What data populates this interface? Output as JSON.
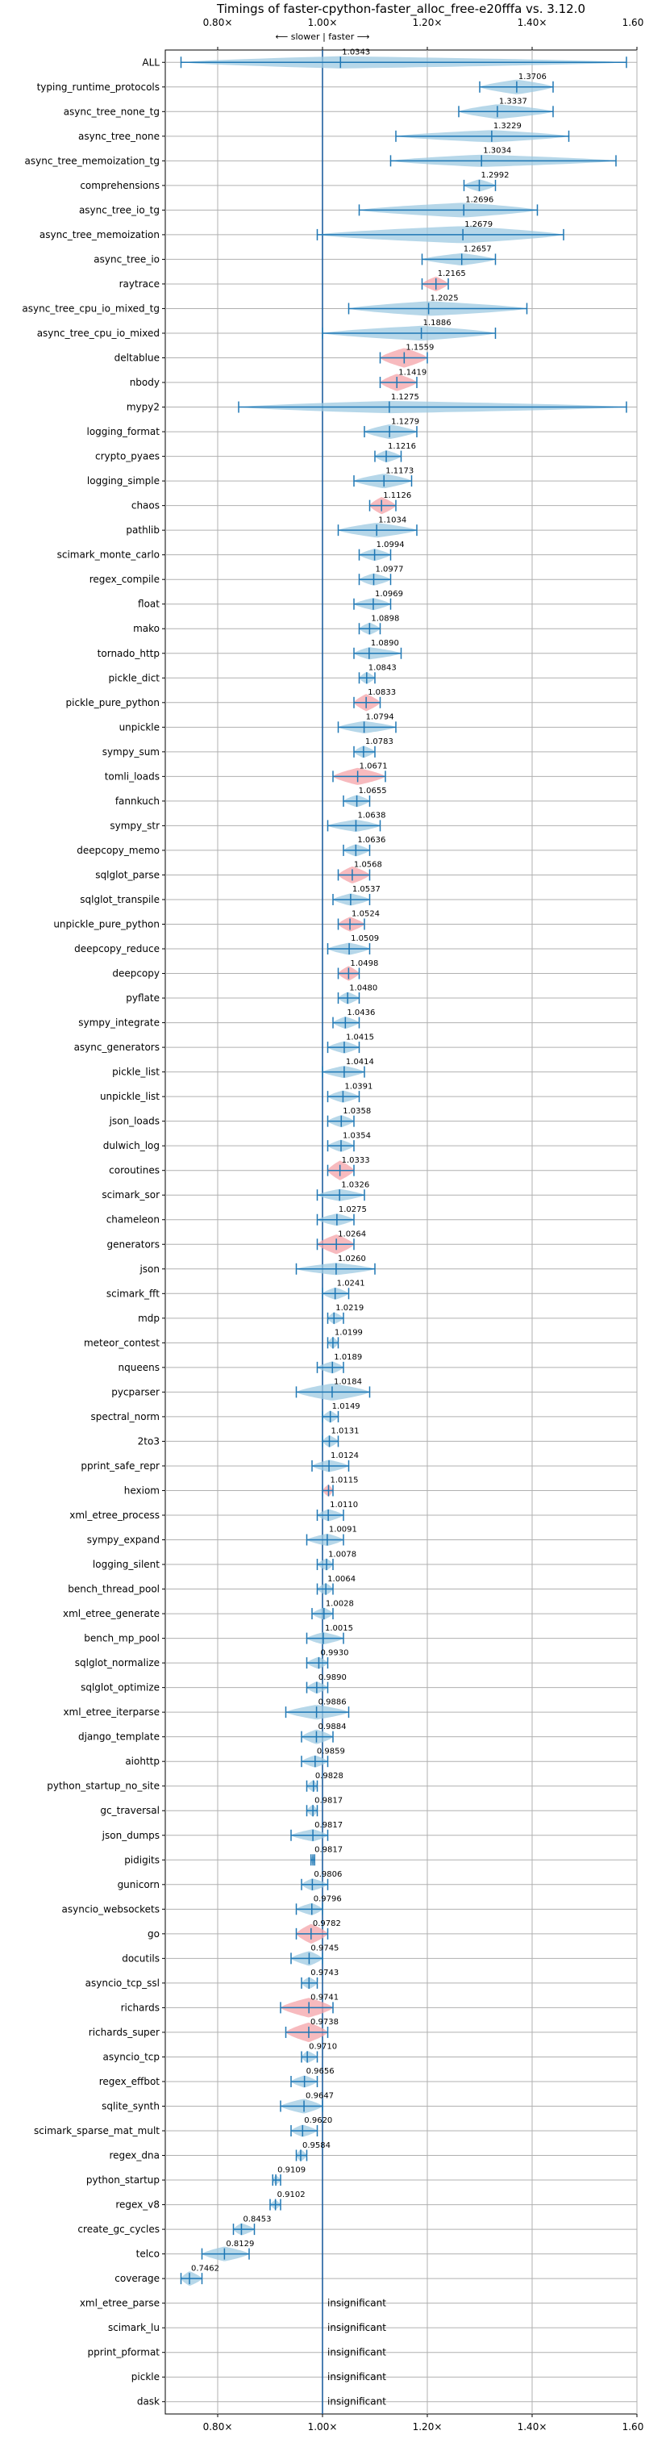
{
  "chart_data": {
    "type": "violin",
    "title": "Timings of faster-cpython-faster_alloc_free-e20fffa vs. 3.12.0",
    "direction_label": "⟵ slower | faster ⟶",
    "x_ticks": [
      "0.80×",
      "1.00×",
      "1.20×",
      "1.40×",
      "1.60×"
    ],
    "x_tick_values": [
      0.8,
      1.0,
      1.2,
      1.4,
      1.6
    ],
    "xlim": [
      0.7,
      1.6
    ],
    "reference_line": 1.0,
    "grid": true,
    "colors": {
      "normal": "#9ecae1",
      "highlight": "#f4a3a8",
      "line": "#1f77b4",
      "reference": "#1f5f9f"
    },
    "rows": [
      {
        "name": "ALL",
        "value": 1.0343,
        "lo": 0.73,
        "hi": 1.58,
        "width": 0.5,
        "hl": false
      },
      {
        "name": "typing_runtime_protocols",
        "value": 1.3706,
        "lo": 1.3,
        "hi": 1.44,
        "width": 0.6,
        "hl": false
      },
      {
        "name": "async_tree_none_tg",
        "value": 1.3337,
        "lo": 1.26,
        "hi": 1.44,
        "width": 0.6,
        "hl": false
      },
      {
        "name": "async_tree_none",
        "value": 1.3229,
        "lo": 1.14,
        "hi": 1.47,
        "width": 0.5,
        "hl": false
      },
      {
        "name": "async_tree_memoization_tg",
        "value": 1.3034,
        "lo": 1.13,
        "hi": 1.56,
        "width": 0.5,
        "hl": false
      },
      {
        "name": "comprehensions",
        "value": 1.2992,
        "lo": 1.27,
        "hi": 1.33,
        "width": 0.5,
        "hl": false
      },
      {
        "name": "async_tree_io_tg",
        "value": 1.2696,
        "lo": 1.07,
        "hi": 1.41,
        "width": 0.6,
        "hl": false
      },
      {
        "name": "async_tree_memoization",
        "value": 1.2679,
        "lo": 0.99,
        "hi": 1.46,
        "width": 0.7,
        "hl": false
      },
      {
        "name": "async_tree_io",
        "value": 1.2657,
        "lo": 1.19,
        "hi": 1.33,
        "width": 0.5,
        "hl": false
      },
      {
        "name": "raytrace",
        "value": 1.2165,
        "lo": 1.19,
        "hi": 1.24,
        "width": 0.6,
        "hl": true
      },
      {
        "name": "async_tree_cpu_io_mixed_tg",
        "value": 1.2025,
        "lo": 1.05,
        "hi": 1.39,
        "width": 0.6,
        "hl": false
      },
      {
        "name": "async_tree_cpu_io_mixed",
        "value": 1.1886,
        "lo": 1.0,
        "hi": 1.33,
        "width": 0.6,
        "hl": false
      },
      {
        "name": "deltablue",
        "value": 1.1559,
        "lo": 1.11,
        "hi": 1.2,
        "width": 0.8,
        "hl": true
      },
      {
        "name": "nbody",
        "value": 1.1419,
        "lo": 1.11,
        "hi": 1.18,
        "width": 0.7,
        "hl": true
      },
      {
        "name": "mypy2",
        "value": 1.1275,
        "lo": 0.84,
        "hi": 1.58,
        "width": 0.5,
        "hl": false
      },
      {
        "name": "logging_format",
        "value": 1.1279,
        "lo": 1.08,
        "hi": 1.18,
        "width": 0.6,
        "hl": false
      },
      {
        "name": "crypto_pyaes",
        "value": 1.1216,
        "lo": 1.1,
        "hi": 1.15,
        "width": 0.5,
        "hl": false
      },
      {
        "name": "logging_simple",
        "value": 1.1173,
        "lo": 1.06,
        "hi": 1.17,
        "width": 0.6,
        "hl": false
      },
      {
        "name": "chaos",
        "value": 1.1126,
        "lo": 1.09,
        "hi": 1.14,
        "width": 0.7,
        "hl": true
      },
      {
        "name": "pathlib",
        "value": 1.1034,
        "lo": 1.03,
        "hi": 1.18,
        "width": 0.6,
        "hl": false
      },
      {
        "name": "scimark_monte_carlo",
        "value": 1.0994,
        "lo": 1.07,
        "hi": 1.13,
        "width": 0.5,
        "hl": false
      },
      {
        "name": "regex_compile",
        "value": 1.0977,
        "lo": 1.07,
        "hi": 1.13,
        "width": 0.5,
        "hl": false
      },
      {
        "name": "float",
        "value": 1.0969,
        "lo": 1.06,
        "hi": 1.13,
        "width": 0.5,
        "hl": false
      },
      {
        "name": "mako",
        "value": 1.0898,
        "lo": 1.07,
        "hi": 1.11,
        "width": 0.5,
        "hl": false
      },
      {
        "name": "tornado_http",
        "value": 1.089,
        "lo": 1.06,
        "hi": 1.15,
        "width": 0.5,
        "hl": false
      },
      {
        "name": "pickle_dict",
        "value": 1.0843,
        "lo": 1.07,
        "hi": 1.1,
        "width": 0.5,
        "hl": false
      },
      {
        "name": "pickle_pure_python",
        "value": 1.0833,
        "lo": 1.06,
        "hi": 1.11,
        "width": 0.7,
        "hl": true
      },
      {
        "name": "unpickle",
        "value": 1.0794,
        "lo": 1.03,
        "hi": 1.14,
        "width": 0.5,
        "hl": false
      },
      {
        "name": "sympy_sum",
        "value": 1.0783,
        "lo": 1.06,
        "hi": 1.1,
        "width": 0.5,
        "hl": false
      },
      {
        "name": "tomli_loads",
        "value": 1.0671,
        "lo": 1.02,
        "hi": 1.12,
        "width": 0.7,
        "hl": true
      },
      {
        "name": "fannkuch",
        "value": 1.0655,
        "lo": 1.04,
        "hi": 1.09,
        "width": 0.5,
        "hl": false
      },
      {
        "name": "sympy_str",
        "value": 1.0638,
        "lo": 1.01,
        "hi": 1.11,
        "width": 0.5,
        "hl": false
      },
      {
        "name": "deepcopy_memo",
        "value": 1.0636,
        "lo": 1.04,
        "hi": 1.09,
        "width": 0.5,
        "hl": false
      },
      {
        "name": "sqlglot_parse",
        "value": 1.0568,
        "lo": 1.03,
        "hi": 1.09,
        "width": 0.7,
        "hl": true
      },
      {
        "name": "sqlglot_transpile",
        "value": 1.0537,
        "lo": 1.02,
        "hi": 1.09,
        "width": 0.5,
        "hl": false
      },
      {
        "name": "unpickle_pure_python",
        "value": 1.0524,
        "lo": 1.03,
        "hi": 1.08,
        "width": 0.6,
        "hl": true
      },
      {
        "name": "deepcopy_reduce",
        "value": 1.0509,
        "lo": 1.01,
        "hi": 1.09,
        "width": 0.5,
        "hl": false
      },
      {
        "name": "deepcopy",
        "value": 1.0498,
        "lo": 1.03,
        "hi": 1.07,
        "width": 0.6,
        "hl": true
      },
      {
        "name": "pyflate",
        "value": 1.048,
        "lo": 1.03,
        "hi": 1.07,
        "width": 0.5,
        "hl": false
      },
      {
        "name": "sympy_integrate",
        "value": 1.0436,
        "lo": 1.02,
        "hi": 1.07,
        "width": 0.5,
        "hl": false
      },
      {
        "name": "async_generators",
        "value": 1.0415,
        "lo": 1.01,
        "hi": 1.07,
        "width": 0.5,
        "hl": false
      },
      {
        "name": "pickle_list",
        "value": 1.0414,
        "lo": 1.0,
        "hi": 1.08,
        "width": 0.5,
        "hl": false
      },
      {
        "name": "unpickle_list",
        "value": 1.0391,
        "lo": 1.01,
        "hi": 1.07,
        "width": 0.5,
        "hl": false
      },
      {
        "name": "json_loads",
        "value": 1.0358,
        "lo": 1.01,
        "hi": 1.06,
        "width": 0.5,
        "hl": false
      },
      {
        "name": "dulwich_log",
        "value": 1.0354,
        "lo": 1.01,
        "hi": 1.06,
        "width": 0.5,
        "hl": false
      },
      {
        "name": "coroutines",
        "value": 1.0333,
        "lo": 1.01,
        "hi": 1.06,
        "width": 0.8,
        "hl": true
      },
      {
        "name": "scimark_sor",
        "value": 1.0326,
        "lo": 0.99,
        "hi": 1.08,
        "width": 0.5,
        "hl": false
      },
      {
        "name": "chameleon",
        "value": 1.0275,
        "lo": 0.99,
        "hi": 1.06,
        "width": 0.5,
        "hl": false
      },
      {
        "name": "generators",
        "value": 1.0264,
        "lo": 0.99,
        "hi": 1.06,
        "width": 0.8,
        "hl": true
      },
      {
        "name": "json",
        "value": 1.026,
        "lo": 0.95,
        "hi": 1.1,
        "width": 0.5,
        "hl": false
      },
      {
        "name": "scimark_fft",
        "value": 1.0241,
        "lo": 1.0,
        "hi": 1.05,
        "width": 0.5,
        "hl": false
      },
      {
        "name": "mdp",
        "value": 1.0219,
        "lo": 1.01,
        "hi": 1.04,
        "width": 0.5,
        "hl": false
      },
      {
        "name": "meteor_contest",
        "value": 1.0199,
        "lo": 1.01,
        "hi": 1.03,
        "width": 0.5,
        "hl": false
      },
      {
        "name": "nqueens",
        "value": 1.0189,
        "lo": 0.99,
        "hi": 1.04,
        "width": 0.5,
        "hl": false
      },
      {
        "name": "pycparser",
        "value": 1.0184,
        "lo": 0.95,
        "hi": 1.09,
        "width": 0.7,
        "hl": false
      },
      {
        "name": "spectral_norm",
        "value": 1.0149,
        "lo": 1.0,
        "hi": 1.03,
        "width": 0.5,
        "hl": false
      },
      {
        "name": "2to3",
        "value": 1.0131,
        "lo": 1.0,
        "hi": 1.03,
        "width": 0.5,
        "hl": false
      },
      {
        "name": "pprint_safe_repr",
        "value": 1.0124,
        "lo": 0.98,
        "hi": 1.05,
        "width": 0.5,
        "hl": false
      },
      {
        "name": "hexiom",
        "value": 1.0115,
        "lo": 1.0,
        "hi": 1.02,
        "width": 0.5,
        "hl": true
      },
      {
        "name": "xml_etree_process",
        "value": 1.011,
        "lo": 0.99,
        "hi": 1.04,
        "width": 0.5,
        "hl": false
      },
      {
        "name": "sympy_expand",
        "value": 1.0091,
        "lo": 0.97,
        "hi": 1.04,
        "width": 0.5,
        "hl": false
      },
      {
        "name": "logging_silent",
        "value": 1.0078,
        "lo": 0.99,
        "hi": 1.02,
        "width": 0.5,
        "hl": false
      },
      {
        "name": "bench_thread_pool",
        "value": 1.0064,
        "lo": 0.99,
        "hi": 1.02,
        "width": 0.5,
        "hl": false
      },
      {
        "name": "xml_etree_generate",
        "value": 1.0028,
        "lo": 0.98,
        "hi": 1.02,
        "width": 0.5,
        "hl": false
      },
      {
        "name": "bench_mp_pool",
        "value": 1.0015,
        "lo": 0.97,
        "hi": 1.04,
        "width": 0.5,
        "hl": false
      },
      {
        "name": "sqlglot_normalize",
        "value": 0.993,
        "lo": 0.97,
        "hi": 1.01,
        "width": 0.5,
        "hl": false
      },
      {
        "name": "sqlglot_optimize",
        "value": 0.989,
        "lo": 0.97,
        "hi": 1.01,
        "width": 0.5,
        "hl": false
      },
      {
        "name": "xml_etree_iterparse",
        "value": 0.9886,
        "lo": 0.93,
        "hi": 1.05,
        "width": 0.6,
        "hl": false
      },
      {
        "name": "django_template",
        "value": 0.9884,
        "lo": 0.96,
        "hi": 1.02,
        "width": 0.6,
        "hl": false
      },
      {
        "name": "aiohttp",
        "value": 0.9859,
        "lo": 0.96,
        "hi": 1.01,
        "width": 0.5,
        "hl": false
      },
      {
        "name": "python_startup_no_site",
        "value": 0.9828,
        "lo": 0.97,
        "hi": 0.99,
        "width": 0.5,
        "hl": false
      },
      {
        "name": "gc_traversal",
        "value": 0.9817,
        "lo": 0.97,
        "hi": 0.99,
        "width": 0.5,
        "hl": false
      },
      {
        "name": "json_dumps",
        "value": 0.9817,
        "lo": 0.94,
        "hi": 1.01,
        "width": 0.5,
        "hl": false
      },
      {
        "name": "pidigits",
        "value": 0.9817,
        "lo": 0.978,
        "hi": 0.985,
        "width": 0.4,
        "hl": false
      },
      {
        "name": "gunicorn",
        "value": 0.9806,
        "lo": 0.96,
        "hi": 1.01,
        "width": 0.5,
        "hl": false
      },
      {
        "name": "asyncio_websockets",
        "value": 0.9796,
        "lo": 0.95,
        "hi": 1.0,
        "width": 0.5,
        "hl": false
      },
      {
        "name": "go",
        "value": 0.9782,
        "lo": 0.95,
        "hi": 1.01,
        "width": 0.8,
        "hl": true
      },
      {
        "name": "docutils",
        "value": 0.9745,
        "lo": 0.94,
        "hi": 1.0,
        "width": 0.6,
        "hl": false
      },
      {
        "name": "asyncio_tcp_ssl",
        "value": 0.9743,
        "lo": 0.96,
        "hi": 0.99,
        "width": 0.5,
        "hl": false
      },
      {
        "name": "richards",
        "value": 0.9741,
        "lo": 0.92,
        "hi": 1.02,
        "width": 0.8,
        "hl": true
      },
      {
        "name": "richards_super",
        "value": 0.9738,
        "lo": 0.93,
        "hi": 1.01,
        "width": 0.8,
        "hl": true
      },
      {
        "name": "asyncio_tcp",
        "value": 0.971,
        "lo": 0.96,
        "hi": 0.99,
        "width": 0.5,
        "hl": false
      },
      {
        "name": "regex_effbot",
        "value": 0.9656,
        "lo": 0.94,
        "hi": 0.99,
        "width": 0.5,
        "hl": false
      },
      {
        "name": "sqlite_synth",
        "value": 0.9647,
        "lo": 0.92,
        "hi": 1.0,
        "width": 0.6,
        "hl": false
      },
      {
        "name": "scimark_sparse_mat_mult",
        "value": 0.962,
        "lo": 0.94,
        "hi": 0.99,
        "width": 0.5,
        "hl": false
      },
      {
        "name": "regex_dna",
        "value": 0.9584,
        "lo": 0.95,
        "hi": 0.97,
        "width": 0.5,
        "hl": false
      },
      {
        "name": "python_startup",
        "value": 0.9109,
        "lo": 0.905,
        "hi": 0.92,
        "width": 0.4,
        "hl": false
      },
      {
        "name": "regex_v8",
        "value": 0.9102,
        "lo": 0.9,
        "hi": 0.92,
        "width": 0.4,
        "hl": false
      },
      {
        "name": "create_gc_cycles",
        "value": 0.8453,
        "lo": 0.83,
        "hi": 0.87,
        "width": 0.5,
        "hl": false
      },
      {
        "name": "telco",
        "value": 0.8129,
        "lo": 0.77,
        "hi": 0.86,
        "width": 0.6,
        "hl": false
      },
      {
        "name": "coverage",
        "value": 0.7462,
        "lo": 0.73,
        "hi": 0.77,
        "width": 0.6,
        "hl": false
      },
      {
        "name": "xml_etree_parse",
        "value": null,
        "label": "insignificant"
      },
      {
        "name": "scimark_lu",
        "value": null,
        "label": "insignificant"
      },
      {
        "name": "pprint_pformat",
        "value": null,
        "label": "insignificant"
      },
      {
        "name": "pickle",
        "value": null,
        "label": "insignificant"
      },
      {
        "name": "dask",
        "value": null,
        "label": "insignificant"
      }
    ]
  }
}
